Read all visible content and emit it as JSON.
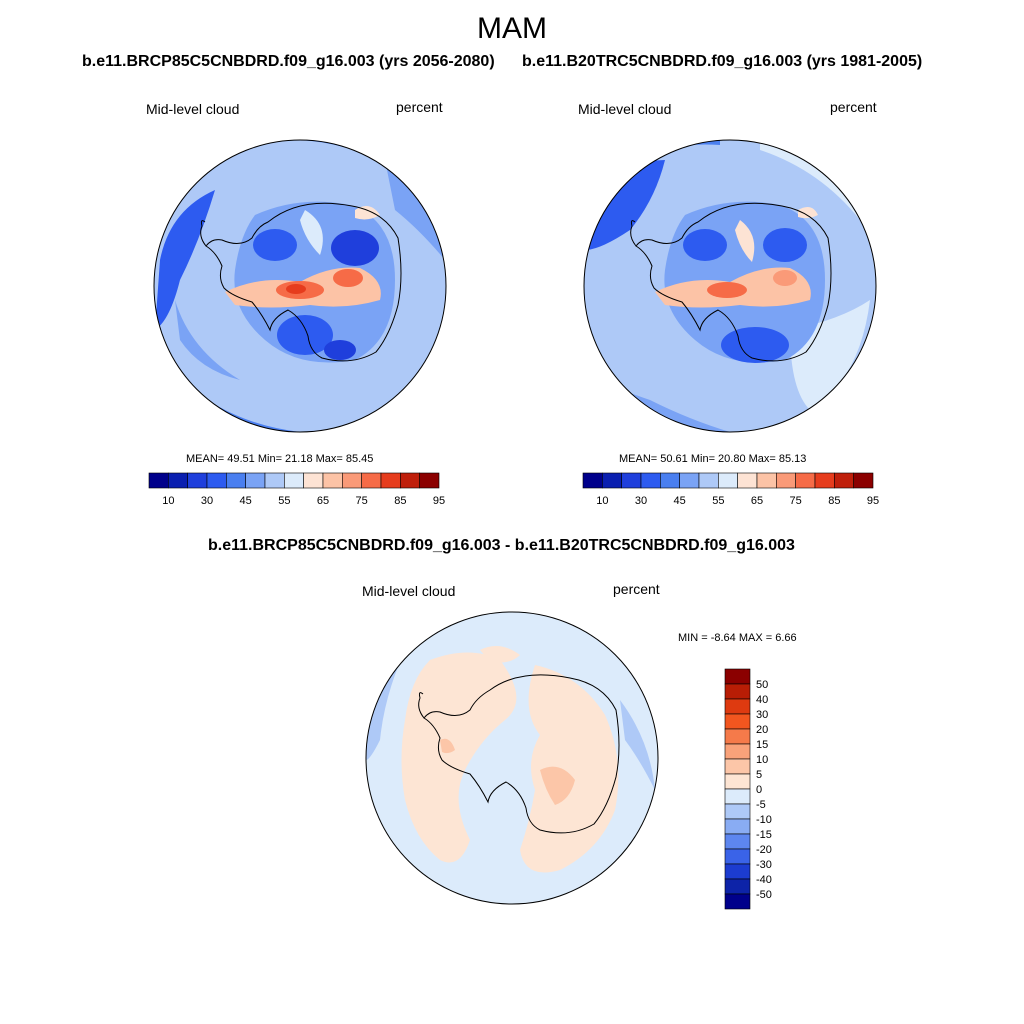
{
  "title": "MAM",
  "panels": [
    {
      "case": "b.e11.BRCP85C5CNBDRD.f09_g16.003 (yrs 2056-2080)",
      "variable": "Mid-level cloud",
      "units": "percent",
      "stats": "MEAN=  49.51  Min=  21.18  Max=  85.45",
      "colorbar_labels": [
        "10",
        "30",
        "45",
        "55",
        "65",
        "75",
        "85",
        "95"
      ]
    },
    {
      "case": "b.e11.B20TRC5CNBDRD.f09_g16.003 (yrs 1981-2005)",
      "variable": "Mid-level cloud",
      "units": "percent",
      "stats": "MEAN=  50.61  Min=  20.80  Max=  85.13",
      "colorbar_labels": [
        "10",
        "30",
        "45",
        "55",
        "65",
        "75",
        "85",
        "95"
      ]
    }
  ],
  "diff": {
    "case": "b.e11.BRCP85C5CNBDRD.f09_g16.003 - b.e11.B20TRC5CNBDRD.f09_g16.003",
    "variable": "Mid-level cloud",
    "units": "percent",
    "stats": "MIN =  -8.64 MAX =   6.66",
    "colorbar_labels": [
      "50",
      "40",
      "30",
      "20",
      "15",
      "10",
      "5",
      "0",
      "-5",
      "-10",
      "-15",
      "-20",
      "-30",
      "-40",
      "-50"
    ]
  },
  "palettes": {
    "abs": [
      "#00008b",
      "#0a1fb0",
      "#1f3fdc",
      "#2d5bf0",
      "#4a7ff0",
      "#7aa3f5",
      "#aec9f7",
      "#dcebfb",
      "#fde3d4",
      "#fcc3a6",
      "#fa9a78",
      "#f66b47",
      "#e63c1d",
      "#bf1f0b",
      "#8b0000"
    ],
    "diff": [
      "#8b0000",
      "#b81d05",
      "#de3a10",
      "#f2561f",
      "#f57a4a",
      "#f9a27a",
      "#fcc6a8",
      "#fde5d4",
      "#dcebfb",
      "#aec9f7",
      "#89acf3",
      "#5d86ef",
      "#3a63e8",
      "#1c3cd0",
      "#0d23a8",
      "#00008b"
    ]
  }
}
